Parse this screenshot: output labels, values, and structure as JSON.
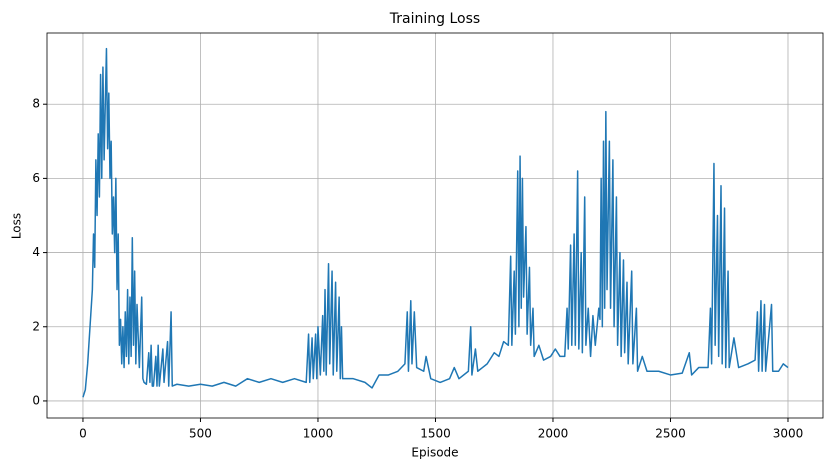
{
  "chart_data": {
    "type": "line",
    "title": "Training Loss",
    "x_label": "Episode",
    "y_label": "Loss",
    "x": [
      0,
      10,
      20,
      30,
      40,
      45,
      50,
      55,
      60,
      65,
      70,
      75,
      80,
      85,
      90,
      95,
      100,
      105,
      110,
      115,
      120,
      125,
      130,
      135,
      140,
      145,
      150,
      155,
      160,
      165,
      170,
      175,
      180,
      185,
      190,
      195,
      200,
      205,
      210,
      215,
      220,
      225,
      230,
      240,
      250,
      255,
      260,
      270,
      280,
      285,
      290,
      295,
      300,
      310,
      315,
      320,
      325,
      340,
      345,
      360,
      365,
      375,
      380,
      400,
      450,
      500,
      550,
      600,
      650,
      700,
      750,
      800,
      850,
      900,
      950,
      960,
      965,
      975,
      980,
      990,
      995,
      1000,
      1010,
      1020,
      1025,
      1030,
      1035,
      1045,
      1050,
      1060,
      1065,
      1075,
      1080,
      1090,
      1095,
      1100,
      1105,
      1110,
      1150,
      1200,
      1230,
      1260,
      1300,
      1340,
      1370,
      1380,
      1385,
      1395,
      1400,
      1410,
      1420,
      1450,
      1460,
      1480,
      1520,
      1560,
      1580,
      1600,
      1640,
      1650,
      1655,
      1670,
      1680,
      1700,
      1720,
      1750,
      1770,
      1790,
      1810,
      1820,
      1825,
      1835,
      1840,
      1850,
      1855,
      1860,
      1865,
      1870,
      1875,
      1885,
      1890,
      1900,
      1905,
      1915,
      1920,
      1940,
      1960,
      1990,
      2010,
      2030,
      2050,
      2060,
      2065,
      2075,
      2080,
      2090,
      2095,
      2105,
      2110,
      2120,
      2125,
      2135,
      2140,
      2150,
      2160,
      2170,
      2180,
      2195,
      2200,
      2205,
      2210,
      2215,
      2220,
      2225,
      2230,
      2240,
      2245,
      2255,
      2260,
      2270,
      2275,
      2285,
      2290,
      2300,
      2305,
      2315,
      2320,
      2335,
      2340,
      2355,
      2360,
      2380,
      2400,
      2450,
      2500,
      2550,
      2580,
      2590,
      2620,
      2660,
      2670,
      2675,
      2685,
      2690,
      2700,
      2705,
      2715,
      2720,
      2730,
      2735,
      2745,
      2750,
      2770,
      2790,
      2830,
      2860,
      2870,
      2875,
      2885,
      2890,
      2900,
      2905,
      2930,
      2935,
      2960,
      2980,
      3000
    ],
    "series": [
      {
        "name": "Loss",
        "color": "#1f77b4",
        "values": [
          0.1,
          0.3,
          1.0,
          2.0,
          3.0,
          4.5,
          3.6,
          6.5,
          5.0,
          7.2,
          5.5,
          8.8,
          6.0,
          9.0,
          6.5,
          8.0,
          9.5,
          6.8,
          8.3,
          6.0,
          7.0,
          4.5,
          5.5,
          4.0,
          6.0,
          3.0,
          4.5,
          1.5,
          2.2,
          1.0,
          2.0,
          0.9,
          2.4,
          1.2,
          3.0,
          1.0,
          2.8,
          1.2,
          4.4,
          1.5,
          3.5,
          1.0,
          2.6,
          0.9,
          2.8,
          0.6,
          0.5,
          0.45,
          1.3,
          0.5,
          1.5,
          0.4,
          0.4,
          1.2,
          0.4,
          1.5,
          0.4,
          1.4,
          0.5,
          1.6,
          0.4,
          2.4,
          0.4,
          0.45,
          0.4,
          0.45,
          0.4,
          0.5,
          0.4,
          0.6,
          0.5,
          0.6,
          0.5,
          0.6,
          0.5,
          1.8,
          0.5,
          1.7,
          0.6,
          1.8,
          0.6,
          2.0,
          0.7,
          2.3,
          0.8,
          3.0,
          0.7,
          3.7,
          1.0,
          3.5,
          0.7,
          3.2,
          0.8,
          2.8,
          0.6,
          2.0,
          0.6,
          0.6,
          0.6,
          0.5,
          0.35,
          0.7,
          0.7,
          0.8,
          1.0,
          2.4,
          0.8,
          2.7,
          1.0,
          2.4,
          0.9,
          0.8,
          1.2,
          0.6,
          0.5,
          0.6,
          0.9,
          0.6,
          0.8,
          2.0,
          0.7,
          1.4,
          0.8,
          0.9,
          1.0,
          1.3,
          1.2,
          1.6,
          1.5,
          3.9,
          1.5,
          3.5,
          1.8,
          6.2,
          2.0,
          6.6,
          2.5,
          6.0,
          2.8,
          4.7,
          1.8,
          3.6,
          1.5,
          2.5,
          1.2,
          1.5,
          1.1,
          1.2,
          1.4,
          1.2,
          1.2,
          2.5,
          1.4,
          4.2,
          1.5,
          4.5,
          1.5,
          6.2,
          1.4,
          4.0,
          1.3,
          5.5,
          1.5,
          2.5,
          1.2,
          2.3,
          1.5,
          2.5,
          2.2,
          6.0,
          2.0,
          7.0,
          2.5,
          7.8,
          3.0,
          7.0,
          2.5,
          6.5,
          2.0,
          5.5,
          1.5,
          4.0,
          1.2,
          3.8,
          1.3,
          3.2,
          1.0,
          3.5,
          1.0,
          2.5,
          0.8,
          1.2,
          0.8,
          0.8,
          0.7,
          0.75,
          1.3,
          0.7,
          0.9,
          0.9,
          2.5,
          1.0,
          6.4,
          1.5,
          5.0,
          1.2,
          5.8,
          1.0,
          5.2,
          0.9,
          3.5,
          0.9,
          1.7,
          0.9,
          1.0,
          1.1,
          2.4,
          0.8,
          2.7,
          0.8,
          2.6,
          0.8,
          2.6,
          0.8,
          0.8,
          1.0,
          0.9
        ]
      }
    ],
    "xlim": [
      -153,
      3149
    ],
    "ylim": [
      -0.46,
      9.92
    ],
    "xticks": [
      0,
      500,
      1000,
      1500,
      2000,
      2500,
      3000
    ],
    "yticks": [
      0,
      2,
      4,
      6,
      8
    ],
    "grid": true
  }
}
